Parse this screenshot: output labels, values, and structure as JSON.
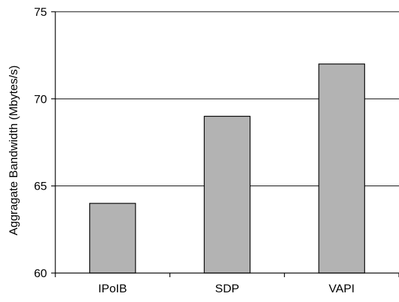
{
  "chart_data": {
    "type": "bar",
    "categories": [
      "IPoIB",
      "SDP",
      "VAPI"
    ],
    "values": [
      64,
      69,
      72
    ],
    "title": "",
    "xlabel": "",
    "ylabel": "Aggragate Bandwidth (Mbytes/s)",
    "ylim": [
      60,
      75
    ],
    "yticks": [
      60,
      65,
      70,
      75
    ],
    "grid": true,
    "legend": "none",
    "colors": {
      "bar_fill": "#b3b3b3",
      "bar_stroke": "#000000",
      "grid": "#000000"
    }
  }
}
